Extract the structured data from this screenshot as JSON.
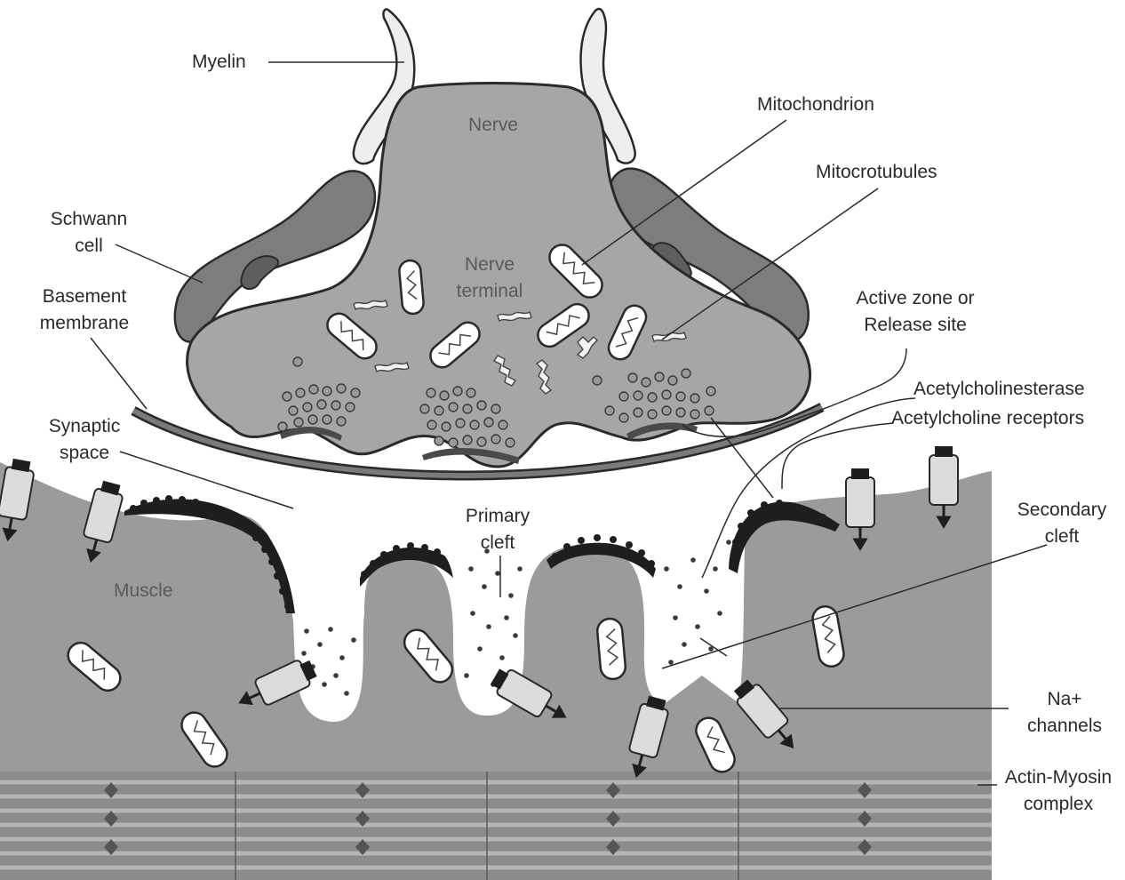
{
  "labels": {
    "myelin": "Myelin",
    "nerve": "Nerve",
    "mitochondrion": "Mitochondrion",
    "microtubules": "Mitocrotubules",
    "schwann_1": "Schwann",
    "schwann_2": "cell",
    "nerve_terminal_1": "Nerve",
    "nerve_terminal_2": "terminal",
    "basement_1": "Basement",
    "basement_2": "membrane",
    "active_zone_1": "Active zone or",
    "active_zone_2": "Release site",
    "acetylcholinesterase": "Acetylcholinesterase",
    "ach_receptors": "Acetylcholine receptors",
    "synaptic_1": "Synaptic",
    "synaptic_2": "space",
    "primary_1": "Primary",
    "primary_2": "cleft",
    "secondary_1": "Secondary",
    "secondary_2": "cleft",
    "muscle": "Muscle",
    "na_1": "Na+",
    "na_2": "channels",
    "actin_1": "Actin-Myosin",
    "actin_2": "complex"
  },
  "colors": {
    "tissue": "#9b9b9b",
    "nerve": "#a6a6a6",
    "schwann": "#7d7d7d",
    "myelin": "#eeeeee",
    "outline": "#2a2a2a"
  }
}
